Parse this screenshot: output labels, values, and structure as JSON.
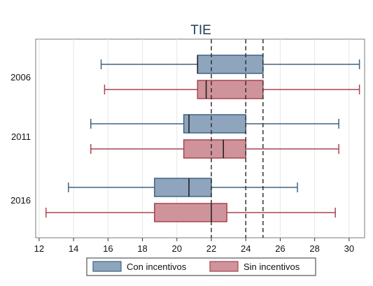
{
  "chart_data": {
    "type": "boxplot",
    "orientation": "horizontal",
    "title": "TIE",
    "categories": [
      "2006",
      "2011",
      "2016"
    ],
    "xlim": [
      11.8,
      30.9
    ],
    "x_ticks": [
      12,
      14,
      16,
      18,
      20,
      22,
      24,
      26,
      28,
      30
    ],
    "reference_lines": [
      22,
      24,
      25
    ],
    "reference_line_style": "dashed",
    "grid": true,
    "legend_position": "bottom",
    "series": [
      {
        "name": "Con incentivos",
        "color": "#8fa5bd",
        "stroke": "#3f6484",
        "boxes": [
          {
            "category": "2006",
            "min": 15.6,
            "q1": 21.2,
            "median": 21.2,
            "q3": 25.0,
            "max": 30.6
          },
          {
            "category": "2011",
            "min": 15.0,
            "q1": 20.4,
            "median": 20.7,
            "q3": 24.0,
            "max": 29.4
          },
          {
            "category": "2016",
            "min": 13.7,
            "q1": 18.7,
            "median": 20.7,
            "q3": 22.0,
            "max": 27.0
          }
        ]
      },
      {
        "name": "Sin incentivos",
        "color": "#cf939b",
        "stroke": "#a84450",
        "boxes": [
          {
            "category": "2006",
            "min": 15.8,
            "q1": 21.2,
            "median": 21.7,
            "q3": 25.0,
            "max": 30.6
          },
          {
            "category": "2011",
            "min": 15.0,
            "q1": 20.4,
            "median": 22.7,
            "q3": 24.0,
            "max": 29.4
          },
          {
            "category": "2016",
            "min": 12.4,
            "q1": 18.7,
            "median": 22.0,
            "q3": 22.9,
            "max": 29.2
          }
        ]
      }
    ]
  }
}
